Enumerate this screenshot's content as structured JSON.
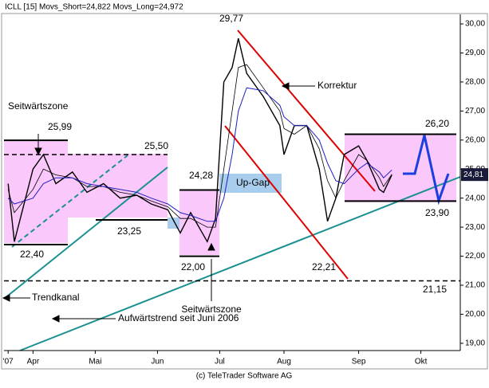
{
  "chart_data": {
    "type": "line",
    "header": "ICLL [15]  Movs_Short=24,822  Movs_Long=24,972",
    "footer": "(c) TeleTrader Software AG",
    "x": [
      2,
      5,
      14,
      19,
      25,
      33,
      40,
      48,
      56,
      64,
      71,
      79,
      85,
      90,
      98,
      102,
      106,
      110,
      113,
      117,
      125,
      133,
      135,
      140,
      146,
      152,
      156,
      160,
      164,
      171,
      175,
      181,
      183,
      187
    ],
    "series": [
      {
        "name": "ICLL",
        "color": "#000000",
        "width": 1.4,
        "values": [
          24.5,
          22.5,
          25.0,
          25.5,
          24.5,
          24.9,
          24.2,
          24.5,
          24.0,
          24.1,
          23.8,
          23.6,
          22.8,
          23.5,
          22.5,
          23.3,
          28.0,
          28.5,
          29.5,
          28.3,
          27.5,
          26.5,
          25.5,
          26.5,
          26.5,
          25.0,
          23.2,
          24.0,
          25.5,
          25.8,
          25.3,
          24.3,
          24.2,
          24.8
        ]
      },
      {
        "name": "Movs_Short",
        "color": "#000000",
        "width": 0.8,
        "values": [
          24.3,
          23.5,
          24.3,
          25.0,
          24.8,
          24.7,
          24.4,
          24.4,
          24.2,
          24.1,
          23.9,
          23.7,
          23.3,
          23.3,
          23.0,
          23.0,
          25.0,
          27.0,
          28.5,
          28.6,
          27.8,
          27.0,
          26.4,
          26.2,
          26.5,
          25.7,
          24.6,
          24.0,
          24.6,
          25.5,
          25.3,
          24.7,
          24.4,
          24.822
        ]
      },
      {
        "name": "Movs_Long",
        "color": "#2020c0",
        "width": 1,
        "values": [
          24.0,
          23.8,
          24.0,
          24.5,
          24.7,
          24.7,
          24.5,
          24.4,
          24.3,
          24.2,
          24.0,
          23.8,
          23.5,
          23.4,
          23.2,
          23.2,
          24.0,
          25.5,
          27.0,
          27.8,
          27.7,
          27.2,
          26.8,
          26.5,
          26.5,
          26.0,
          25.2,
          24.6,
          24.5,
          25.0,
          25.2,
          24.9,
          24.7,
          24.972
        ]
      }
    ],
    "xlim": [
      0,
      220
    ],
    "xticks": [
      {
        "value": 2,
        "label": "'07"
      },
      {
        "value": 14,
        "label": "Apr"
      },
      {
        "value": 44,
        "label": "Mai"
      },
      {
        "value": 74,
        "label": "Jun"
      },
      {
        "value": 104,
        "label": "Jul"
      },
      {
        "value": 135,
        "label": "Aug"
      },
      {
        "value": 171,
        "label": "Sep"
      },
      {
        "value": 201,
        "label": "Okt"
      }
    ],
    "ylim": [
      18.75,
      30.33
    ],
    "yticks": [
      {
        "value": 19,
        "label": "19,00"
      },
      {
        "value": 20,
        "label": "20,00"
      },
      {
        "value": 21,
        "label": "21,00"
      },
      {
        "value": 22,
        "label": "22,00"
      },
      {
        "value": 23,
        "label": "23,00"
      },
      {
        "value": 24,
        "label": "24,00"
      },
      {
        "value": 25,
        "label": "25,00"
      },
      {
        "value": 26,
        "label": "26,00"
      },
      {
        "value": 27,
        "label": "27,00"
      },
      {
        "value": 28,
        "label": "28,00"
      },
      {
        "value": 29,
        "label": "29,00"
      },
      {
        "value": 30,
        "label": "30,00"
      }
    ],
    "last_value": {
      "value": 24.81,
      "label": "24,81"
    },
    "levels": [
      {
        "value": 25.99,
        "label": "25,99"
      },
      {
        "value": 25.5,
        "label": "25,50"
      },
      {
        "value": 23.25,
        "label": "23,25"
      },
      {
        "value": 22.4,
        "label": "22,40"
      },
      {
        "value": 22.0,
        "label": "22,00"
      },
      {
        "value": 24.28,
        "label": "24,28"
      },
      {
        "value": 29.77,
        "label": "29,77"
      },
      {
        "value": 22.21,
        "label": "22,21"
      },
      {
        "value": 26.2,
        "label": "26,20"
      },
      {
        "value": 23.9,
        "label": "23,90"
      },
      {
        "value": 21.15,
        "label": "21,15"
      }
    ],
    "annotations": [
      "Seitwärtszone",
      "Seitwärtszone",
      "Korrektur",
      "Up-Gap",
      "Trendkanal",
      "Aufwärtstrend seit Juni 2006"
    ]
  }
}
